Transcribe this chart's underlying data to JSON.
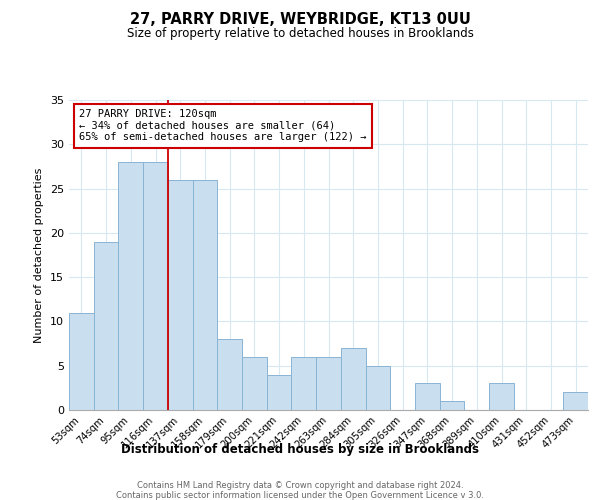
{
  "title1": "27, PARRY DRIVE, WEYBRIDGE, KT13 0UU",
  "title2": "Size of property relative to detached houses in Brooklands",
  "xlabel": "Distribution of detached houses by size in Brooklands",
  "ylabel": "Number of detached properties",
  "bar_labels": [
    "53sqm",
    "74sqm",
    "95sqm",
    "116sqm",
    "137sqm",
    "158sqm",
    "179sqm",
    "200sqm",
    "221sqm",
    "242sqm",
    "263sqm",
    "284sqm",
    "305sqm",
    "326sqm",
    "347sqm",
    "368sqm",
    "389sqm",
    "410sqm",
    "431sqm",
    "452sqm",
    "473sqm"
  ],
  "bar_values": [
    11,
    19,
    28,
    28,
    26,
    26,
    8,
    6,
    4,
    6,
    6,
    7,
    5,
    0,
    3,
    1,
    0,
    3,
    0,
    0,
    2
  ],
  "bar_color": "#c9dff0",
  "bar_edge_color": "#8ab4d4",
  "vline_x_index": 3,
  "annotation_line1": "27 PARRY DRIVE: 120sqm",
  "annotation_line2": "← 34% of detached houses are smaller (64)",
  "annotation_line3": "65% of semi-detached houses are larger (122) →",
  "annotation_box_facecolor": "#ffffff",
  "annotation_box_edgecolor": "#cc0000",
  "vline_color": "#cc0000",
  "ylim": [
    0,
    35
  ],
  "yticks": [
    0,
    5,
    10,
    15,
    20,
    25,
    30,
    35
  ],
  "footer1": "Contains HM Land Registry data © Crown copyright and database right 2024.",
  "footer2": "Contains public sector information licensed under the Open Government Licence v 3.0.",
  "bg_color": "#ffffff",
  "grid_color": "#d8e8f0"
}
